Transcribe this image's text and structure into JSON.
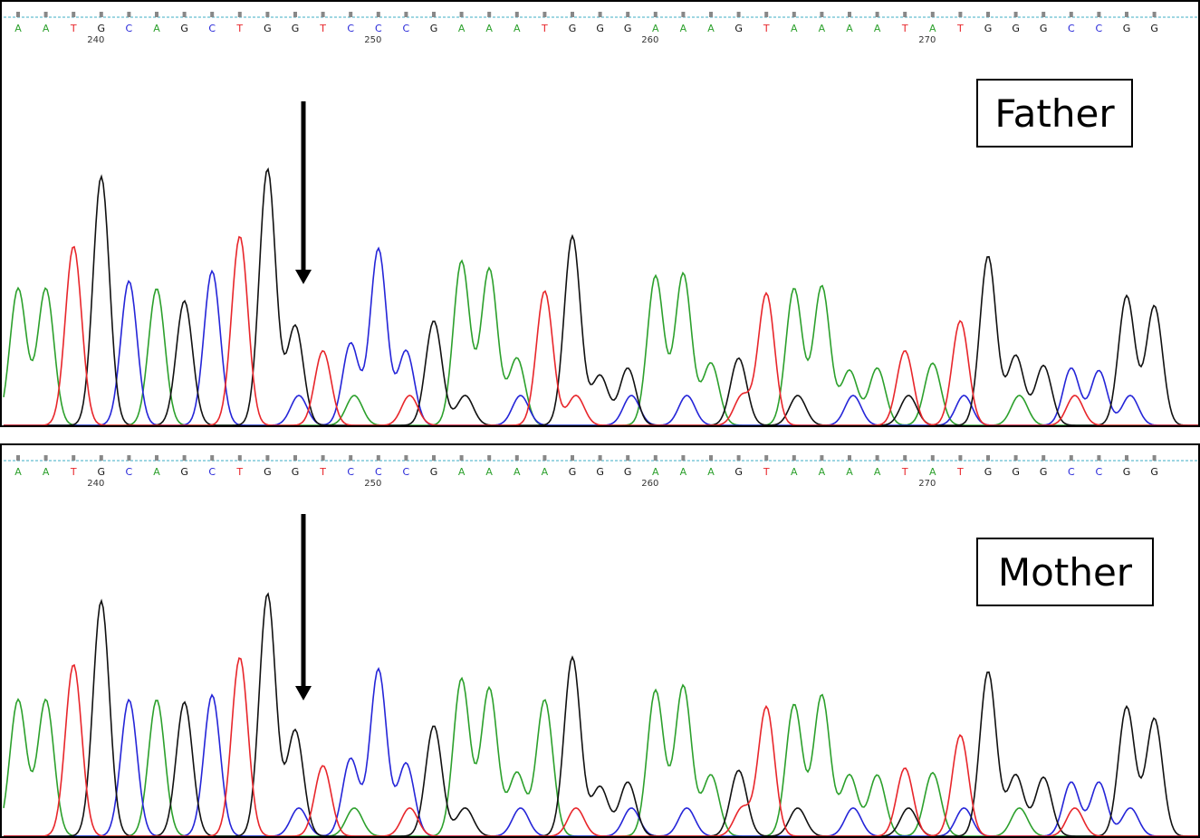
{
  "colors": {
    "A": "#2ca02c",
    "C": "#2525d8",
    "G": "#111111",
    "T": "#e8262b",
    "baseline": "#7ec8d8",
    "tick": "#888888"
  },
  "panels": [
    {
      "label": "Father",
      "bases": "AATGCAGCTGGTCCCGAAATGGGAAAGTAAAATATGGGCCGG",
      "position_markers": [
        {
          "value": "240",
          "base_index": 3
        },
        {
          "value": "250",
          "base_index": 13
        },
        {
          "value": "260",
          "base_index": 23
        },
        {
          "value": "270",
          "base_index": 33
        }
      ],
      "arrow_base_index": 10
    },
    {
      "label": "Mother",
      "bases": "AATGCAGCTGGTCCCGAAAAGGGAAAGTAAAATATGGGCCGG",
      "position_markers": [
        {
          "value": "240",
          "base_index": 3
        },
        {
          "value": "250",
          "base_index": 13
        },
        {
          "value": "260",
          "base_index": 23
        },
        {
          "value": "270",
          "base_index": 33
        }
      ],
      "arrow_base_index": 10
    }
  ]
}
